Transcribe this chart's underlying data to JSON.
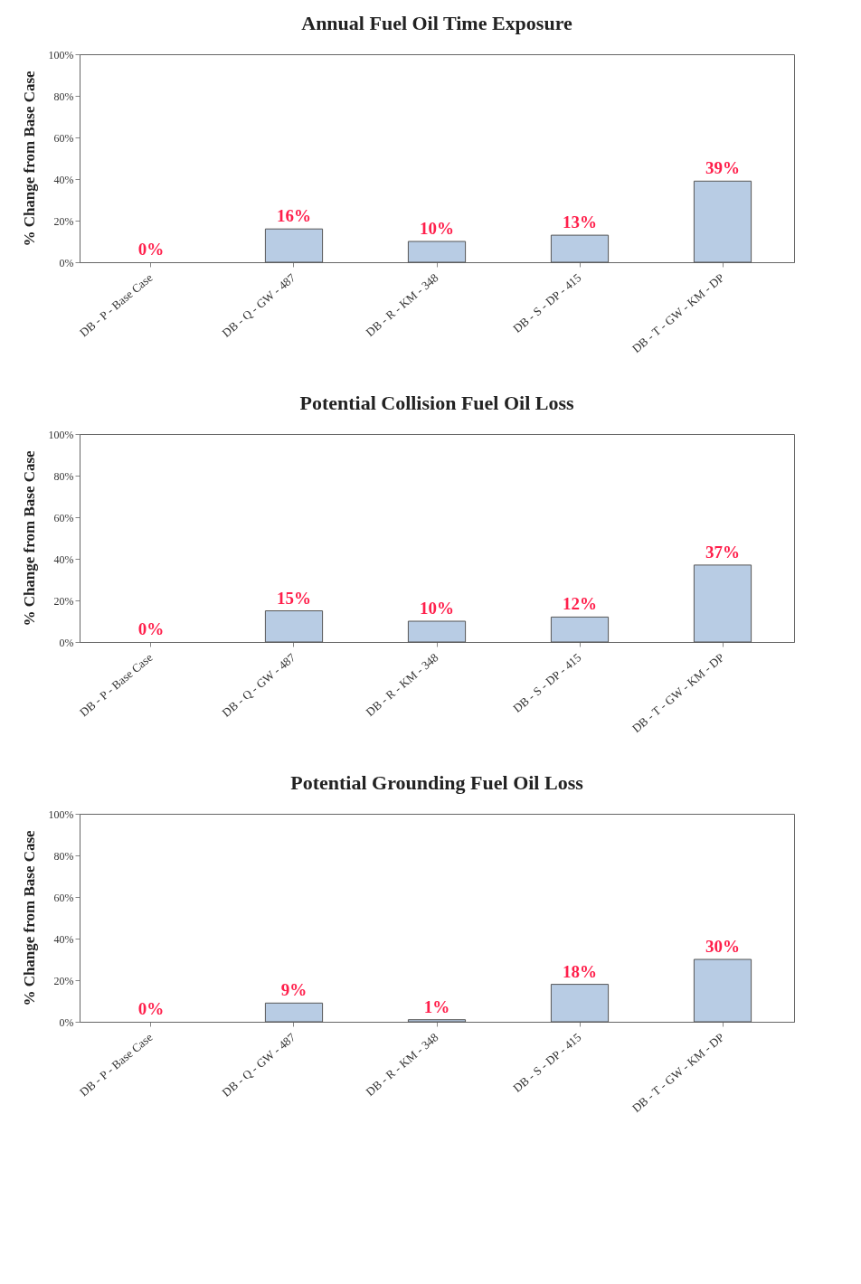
{
  "chart_data": [
    {
      "type": "bar",
      "title": "Annual Fuel Oil Time Exposure",
      "ylabel": "% Change from Base Case",
      "categories": [
        "DB - P - Base Case",
        "DB - Q - GW - 487",
        "DB - R - KM - 348",
        "DB - S - DP - 415",
        "DB - T - GW - KM - DP"
      ],
      "series": [
        {
          "color": "#b8cce4",
          "values": [
            0,
            16,
            10,
            13,
            39
          ],
          "value_labels": [
            "0%",
            "16%",
            "10%",
            "13%",
            "39%"
          ]
        }
      ],
      "ylim": [
        0,
        100
      ],
      "yticks": [
        {
          "value": 0,
          "label": "0%"
        },
        {
          "value": 20,
          "label": "20%"
        },
        {
          "value": 40,
          "label": "40%"
        },
        {
          "value": 60,
          "label": "60%"
        },
        {
          "value": 80,
          "label": "80%"
        },
        {
          "value": 100,
          "label": "100%"
        }
      ],
      "grid": false,
      "legend": false
    },
    {
      "type": "bar",
      "title": "Potential Collision Fuel Oil Loss",
      "ylabel": "% Change from Base Case",
      "categories": [
        "DB - P - Base Case",
        "DB - Q - GW - 487",
        "DB - R - KM - 348",
        "DB - S - DP - 415",
        "DB - T - GW - KM - DP"
      ],
      "series": [
        {
          "color": "#b8cce4",
          "values": [
            0,
            15,
            10,
            12,
            37
          ],
          "value_labels": [
            "0%",
            "15%",
            "10%",
            "12%",
            "37%"
          ]
        }
      ],
      "ylim": [
        0,
        100
      ],
      "yticks": [
        {
          "value": 0,
          "label": "0%"
        },
        {
          "value": 20,
          "label": "20%"
        },
        {
          "value": 40,
          "label": "40%"
        },
        {
          "value": 60,
          "label": "60%"
        },
        {
          "value": 80,
          "label": "80%"
        },
        {
          "value": 100,
          "label": "100%"
        }
      ],
      "grid": false,
      "legend": false
    },
    {
      "type": "bar",
      "title": "Potential Grounding Fuel Oil Loss",
      "ylabel": "% Change from Base Case",
      "categories": [
        "DB - P - Base Case",
        "DB - Q - GW - 487",
        "DB - R - KM - 348",
        "DB - S - DP - 415",
        "DB - T - GW - KM - DP"
      ],
      "series": [
        {
          "color": "#b8cce4",
          "values": [
            0,
            9,
            1,
            18,
            30
          ],
          "value_labels": [
            "0%",
            "9%",
            "1%",
            "18%",
            "30%"
          ]
        }
      ],
      "ylim": [
        0,
        100
      ],
      "yticks": [
        {
          "value": 0,
          "label": "0%"
        },
        {
          "value": 20,
          "label": "20%"
        },
        {
          "value": 40,
          "label": "40%"
        },
        {
          "value": 60,
          "label": "60%"
        },
        {
          "value": 80,
          "label": "80%"
        },
        {
          "value": 100,
          "label": "100%"
        }
      ],
      "grid": false,
      "legend": false
    }
  ]
}
